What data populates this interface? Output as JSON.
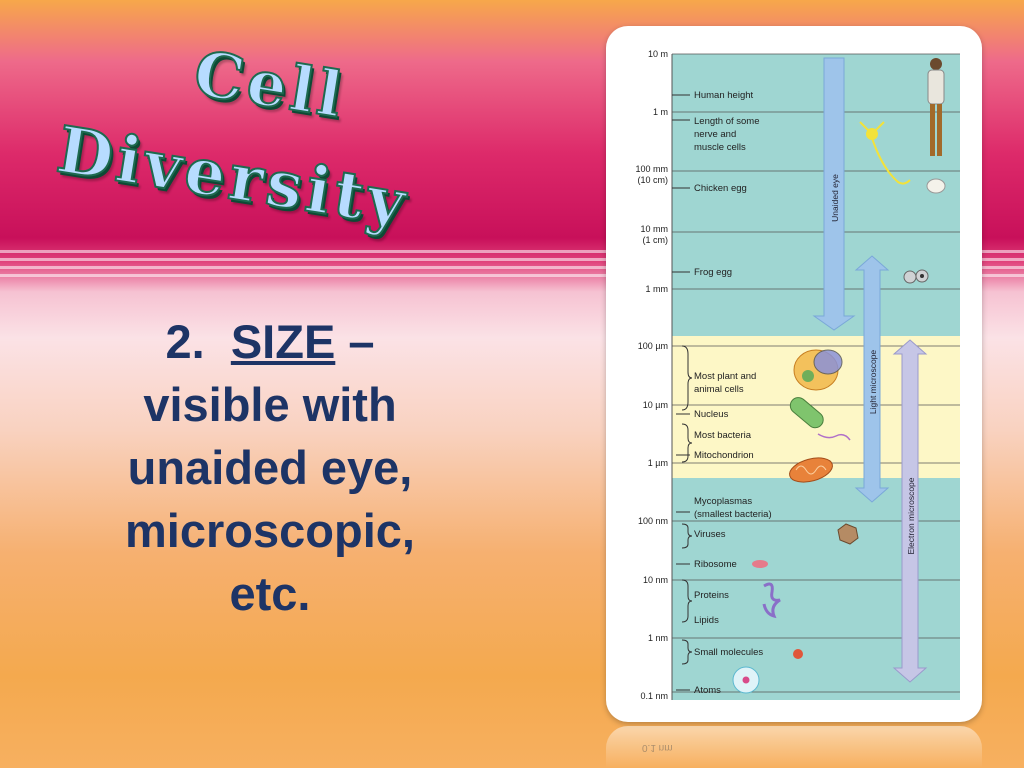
{
  "slide": {
    "title_line1": "Cell",
    "title_line2": "Diversity",
    "point_number": "2.",
    "point_keyword": "SIZE",
    "point_dash": "–",
    "point_line2": "visible with",
    "point_line3": "unaided eye,",
    "point_line4": "microscopic,",
    "point_line5": "etc."
  },
  "figure": {
    "scale_labels": [
      "10 m",
      "1 m",
      "100 mm",
      "(10 cm)",
      "10 mm",
      "(1 cm)",
      "1 mm",
      "100 µm",
      "10 µm",
      "1 µm",
      "100 nm",
      "10 nm",
      "1 nm",
      "0.1 nm"
    ],
    "items": [
      "Human height",
      "Length of some",
      "nerve and",
      "muscle cells",
      "Chicken egg",
      "Frog egg",
      "Most plant and",
      "animal cells",
      "Nucleus",
      "Most bacteria",
      "Mitochondrion",
      "Mycoplasmas",
      "(smallest bacteria)",
      "Viruses",
      "Ribosome",
      "Proteins",
      "Lipids",
      "Small molecules",
      "Atoms"
    ],
    "ranges": [
      "Unaided eye",
      "Light microscope",
      "Electron microscope"
    ],
    "colors": {
      "teal": "#9fd6d2",
      "yellow": "#fdf7c6",
      "arrow": "#9ec4ea",
      "electron": "#c6c6e6"
    }
  }
}
